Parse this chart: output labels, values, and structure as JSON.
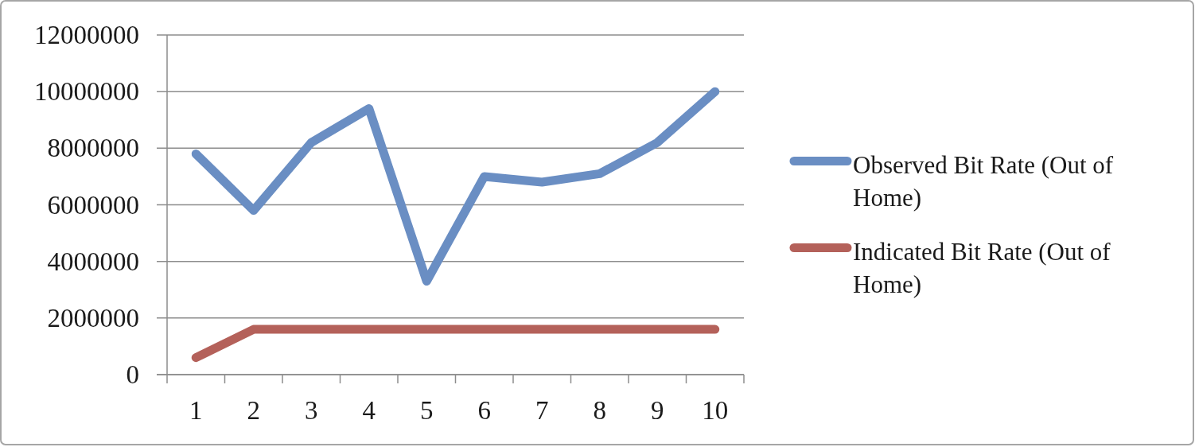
{
  "chart_data": {
    "type": "line",
    "categories": [
      "1",
      "2",
      "3",
      "4",
      "5",
      "6",
      "7",
      "8",
      "9",
      "10"
    ],
    "series": [
      {
        "name": "Observed Bit Rate (Out of Home)",
        "color": "#6a8ec3",
        "values": [
          7800000,
          5800000,
          8200000,
          9400000,
          3300000,
          7000000,
          6800000,
          7100000,
          8200000,
          10000000
        ]
      },
      {
        "name": "Indicated Bit Rate (Out of Home)",
        "color": "#b4615a",
        "values": [
          600000,
          1600000,
          1600000,
          1600000,
          1600000,
          1600000,
          1600000,
          1600000,
          1600000,
          1600000
        ]
      }
    ],
    "ylim": [
      0,
      12000000
    ],
    "yticks": [
      0,
      2000000,
      4000000,
      6000000,
      8000000,
      10000000,
      12000000
    ],
    "grid": "y",
    "legend": "right"
  }
}
